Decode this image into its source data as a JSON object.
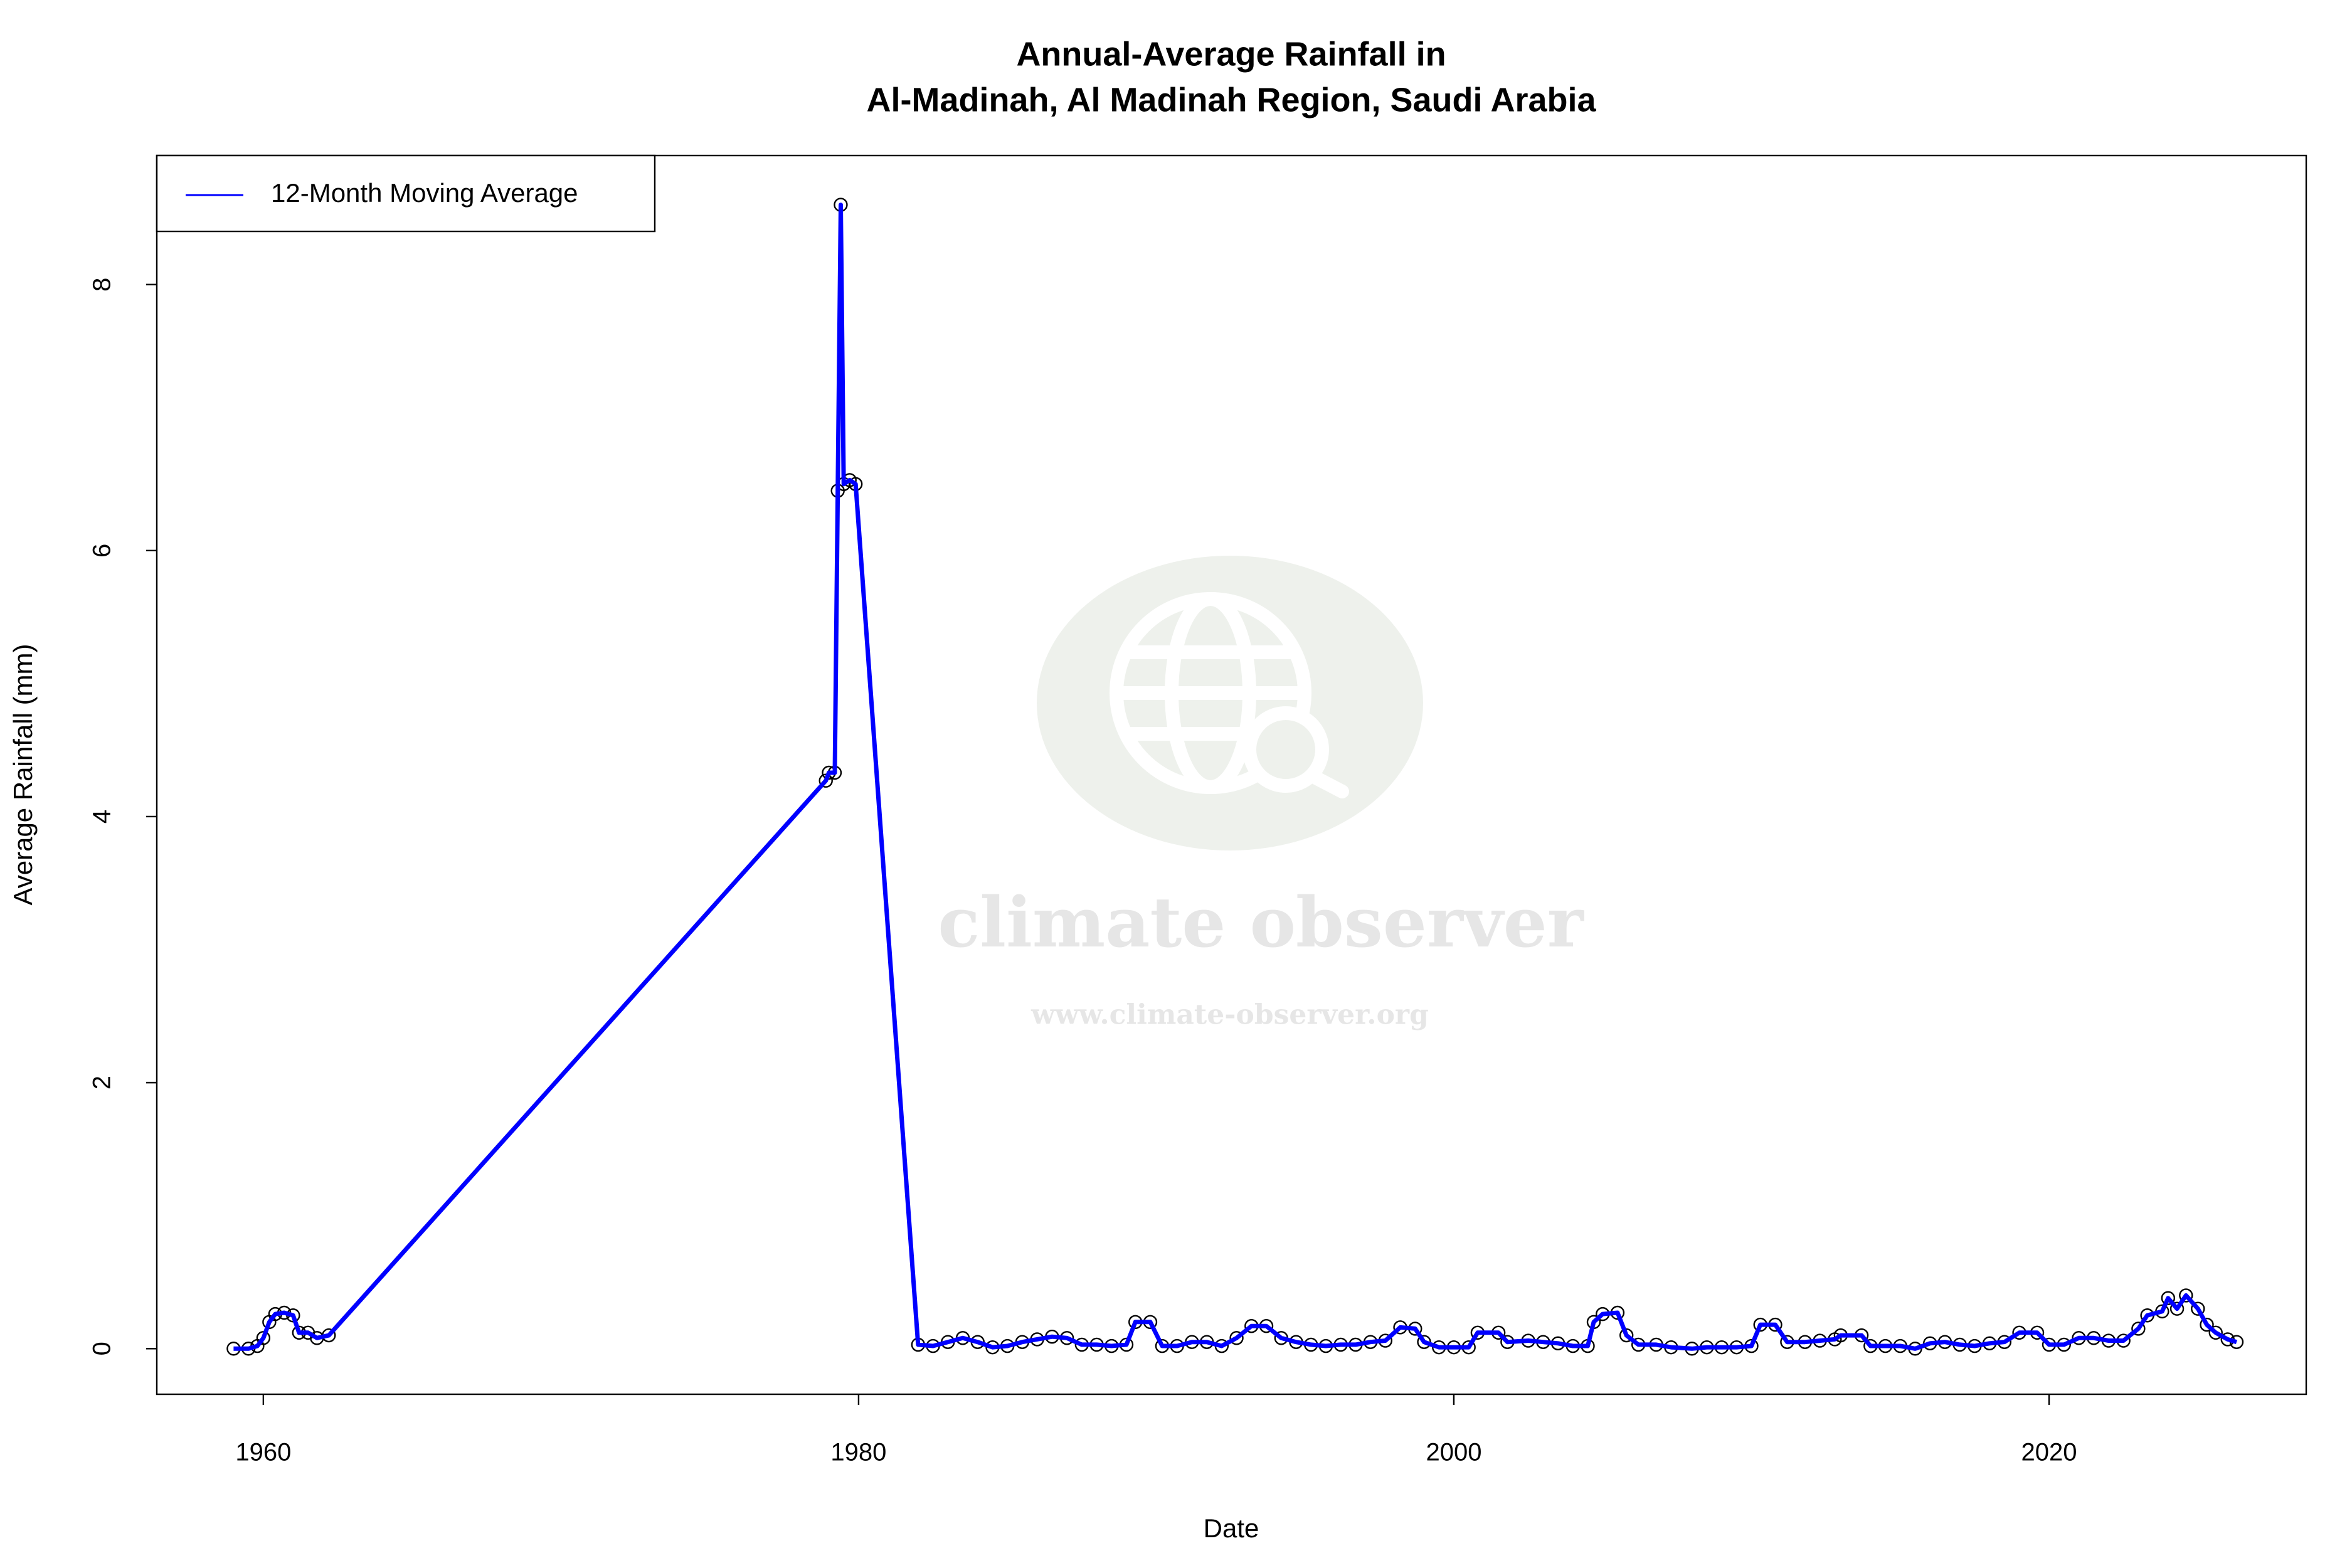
{
  "chart_data": {
    "type": "line",
    "title": [
      "Annual-Average Rainfall in",
      "Al-Madinah, Al Madinah Region, Saudi Arabia"
    ],
    "xlabel": "Date",
    "ylabel": "Average Rainfall (mm)",
    "watermark": {
      "title": "climate observer",
      "url": "www.climate-observer.org"
    },
    "legend": "top-left",
    "marker_color": "#000000",
    "x": [
      1959.0,
      1959.5,
      1959.8,
      1960.0,
      1960.2,
      1960.4,
      1960.7,
      1961.0,
      1961.2,
      1961.5,
      1961.8,
      1962.2,
      1978.9,
      1979.0,
      1979.2,
      1979.3,
      1979.4,
      1979.5,
      1979.7,
      1979.9,
      1982.0,
      1982.5,
      1983.0,
      1983.5,
      1984.0,
      1984.5,
      1985.0,
      1985.5,
      1986.0,
      1986.5,
      1987.0,
      1987.5,
      1988.0,
      1988.5,
      1989.0,
      1989.3,
      1989.8,
      1990.2,
      1990.7,
      1991.2,
      1991.7,
      1992.2,
      1992.7,
      1993.2,
      1993.7,
      1994.2,
      1994.7,
      1995.2,
      1995.7,
      1996.2,
      1996.7,
      1997.2,
      1997.7,
      1998.2,
      1998.7,
      1999.0,
      1999.5,
      2000.0,
      2000.5,
      2000.8,
      2001.5,
      2001.8,
      2002.5,
      2003.0,
      2003.5,
      2004.0,
      2004.5,
      2004.7,
      2005.0,
      2005.5,
      2005.8,
      2006.2,
      2006.8,
      2007.3,
      2008.0,
      2008.5,
      2009.0,
      2009.5,
      2010.0,
      2010.3,
      2010.8,
      2011.2,
      2011.8,
      2012.3,
      2012.8,
      2013.0,
      2013.7,
      2014.0,
      2014.5,
      2015.0,
      2015.5,
      2016.0,
      2016.5,
      2017.0,
      2017.5,
      2018.0,
      2018.5,
      2019.0,
      2019.6,
      2020.0,
      2020.5,
      2021.0,
      2021.5,
      2022.0,
      2022.5,
      2023.0,
      2023.3,
      2023.8,
      2024.0,
      2024.3,
      2024.6,
      2025.0,
      2025.3,
      2025.6,
      2026.0,
      2026.3
    ],
    "series": [
      {
        "name": "12-Month Moving Average",
        "color": "#0000ff",
        "values": [
          0.0,
          0.0,
          0.02,
          0.08,
          0.2,
          0.26,
          0.27,
          0.25,
          0.12,
          0.12,
          0.08,
          0.1,
          4.27,
          4.33,
          4.33,
          6.45,
          8.6,
          6.5,
          6.53,
          6.5,
          0.03,
          0.02,
          0.05,
          0.08,
          0.05,
          0.01,
          0.02,
          0.05,
          0.07,
          0.09,
          0.08,
          0.03,
          0.03,
          0.02,
          0.03,
          0.2,
          0.2,
          0.02,
          0.02,
          0.05,
          0.05,
          0.02,
          0.08,
          0.17,
          0.17,
          0.08,
          0.05,
          0.03,
          0.02,
          0.03,
          0.03,
          0.05,
          0.06,
          0.16,
          0.15,
          0.05,
          0.01,
          0.01,
          0.01,
          0.12,
          0.12,
          0.05,
          0.06,
          0.05,
          0.04,
          0.02,
          0.02,
          0.2,
          0.26,
          0.27,
          0.1,
          0.03,
          0.03,
          0.01,
          0.0,
          0.01,
          0.01,
          0.01,
          0.02,
          0.18,
          0.18,
          0.05,
          0.05,
          0.06,
          0.07,
          0.1,
          0.1,
          0.02,
          0.02,
          0.02,
          0.0,
          0.04,
          0.05,
          0.03,
          0.02,
          0.04,
          0.05,
          0.12,
          0.12,
          0.03,
          0.03,
          0.08,
          0.08,
          0.06,
          0.06,
          0.15,
          0.25,
          0.28,
          0.38,
          0.3,
          0.4,
          0.3,
          0.18,
          0.12,
          0.07,
          0.05
        ]
      }
    ],
    "xlim": [
      1956.42,
      2028.64
    ],
    "xticks": [
      1960,
      1980,
      2000,
      2020
    ],
    "ylim": [
      -0.343,
      8.97
    ],
    "yticks": [
      0,
      2,
      4,
      6,
      8
    ],
    "grid": false
  }
}
